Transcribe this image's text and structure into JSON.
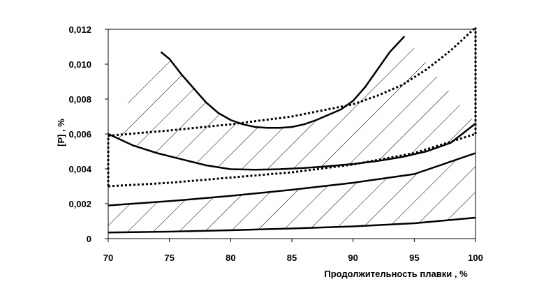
{
  "chart_data": {
    "type": "line",
    "title": "",
    "xlabel": "Продолжительность плавки ,  %",
    "ylabel": "[P] ,  %",
    "xlim": [
      70,
      100
    ],
    "ylim": [
      0,
      0.012
    ],
    "x_ticks": [
      "70",
      "75",
      "80",
      "85",
      "90",
      "95",
      "100"
    ],
    "y_ticks": [
      "0",
      "0,002",
      "0,004",
      "0,006",
      "0,008",
      "0,010",
      "0,012"
    ],
    "grid": false,
    "legend": "none",
    "series": [
      {
        "style": "solid",
        "x": [
          74.3,
          75,
          76,
          77,
          78,
          79,
          80,
          81,
          82,
          83,
          84,
          85,
          86,
          87,
          88,
          89,
          90,
          91,
          92,
          93,
          94.2
        ],
        "y": [
          0.0107,
          0.0103,
          0.0094,
          0.0086,
          0.0078,
          0.0072,
          0.0068,
          0.00655,
          0.0064,
          0.00635,
          0.00635,
          0.0064,
          0.00655,
          0.0068,
          0.0071,
          0.0074,
          0.0079,
          0.0087,
          0.0097,
          0.0107,
          0.0116
        ]
      },
      {
        "style": "solid",
        "x": [
          70,
          72,
          74,
          76,
          78,
          80,
          82,
          84,
          86,
          88,
          90,
          92,
          94,
          96,
          98,
          100
        ],
        "y": [
          0.006,
          0.00535,
          0.0049,
          0.00455,
          0.0042,
          0.00398,
          0.00395,
          0.00398,
          0.00405,
          0.00415,
          0.00428,
          0.00445,
          0.00468,
          0.005,
          0.0055,
          0.0066
        ]
      },
      {
        "style": "solid",
        "x": [
          70,
          75,
          80,
          85,
          90,
          95,
          100
        ],
        "y": [
          0.0019,
          0.00215,
          0.00245,
          0.0028,
          0.0032,
          0.0037,
          0.0049
        ]
      },
      {
        "style": "solid",
        "x": [
          70,
          75,
          80,
          85,
          90,
          95,
          100
        ],
        "y": [
          0.00035,
          0.0004,
          0.00048,
          0.00058,
          0.0007,
          0.00088,
          0.0012
        ]
      },
      {
        "style": "dotted",
        "x": [
          70,
          75,
          80,
          85,
          90,
          92,
          94,
          96,
          98,
          100
        ],
        "y": [
          0.0059,
          0.0062,
          0.00655,
          0.007,
          0.0077,
          0.0082,
          0.0088,
          0.0097,
          0.0108,
          0.0121
        ]
      },
      {
        "style": "dotted",
        "x": [
          70,
          75,
          80,
          85,
          90,
          95,
          100
        ],
        "y": [
          0.003,
          0.0032,
          0.0035,
          0.0038,
          0.00425,
          0.0049,
          0.006
        ]
      },
      {
        "style": "dotted",
        "x": [
          70,
          70
        ],
        "y": [
          0.003,
          0.0059
        ]
      },
      {
        "style": "dotted",
        "x": [
          100,
          100
        ],
        "y": [
          0.006,
          0.0121
        ]
      }
    ],
    "hatched_regions": [
      {
        "upper_series": 0,
        "lower_series": 1,
        "pattern": "diagonal"
      },
      {
        "upper_series": 2,
        "lower_series": 3,
        "pattern": "diagonal"
      }
    ],
    "colors": {
      "line": "#000000",
      "background": "#ffffff"
    }
  }
}
